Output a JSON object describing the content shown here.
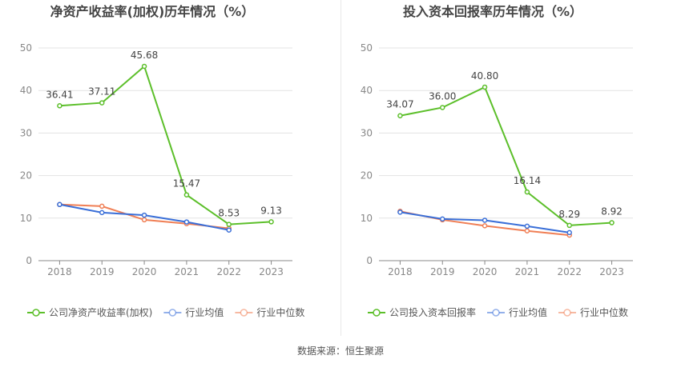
{
  "chart_data": [
    {
      "type": "line",
      "title": "净资产收益率(加权)历年情况（%）",
      "xlabel": "",
      "ylabel": "",
      "ylim": [
        0,
        50
      ],
      "yticks": [
        0,
        10,
        20,
        30,
        40,
        50
      ],
      "categories": [
        "2018",
        "2019",
        "2020",
        "2021",
        "2022",
        "2023"
      ],
      "grid": true,
      "legend_position": "bottom",
      "series": [
        {
          "name": "公司净资产收益率(加权)",
          "color": "#5cbf2a",
          "values": [
            36.41,
            37.11,
            45.68,
            15.47,
            8.53,
            9.13
          ],
          "labels": [
            "36.41",
            "37.11",
            "45.68",
            "15.47",
            "8.53",
            "9.13"
          ]
        },
        {
          "name": "行业均值",
          "color": "#3a6fd8",
          "values": [
            13.2,
            11.3,
            10.7,
            9.1,
            7.2,
            null
          ]
        },
        {
          "name": "行业中位数",
          "color": "#f07f55",
          "values": [
            13.2,
            12.8,
            9.6,
            8.7,
            7.6,
            null
          ]
        }
      ]
    },
    {
      "type": "line",
      "title": "投入资本回报率历年情况（%）",
      "xlabel": "",
      "ylabel": "",
      "ylim": [
        0,
        50
      ],
      "yticks": [
        0,
        10,
        20,
        30,
        40,
        50
      ],
      "categories": [
        "2018",
        "2019",
        "2020",
        "2021",
        "2022",
        "2023"
      ],
      "grid": true,
      "legend_position": "bottom",
      "series": [
        {
          "name": "公司投入资本回报率",
          "color": "#5cbf2a",
          "values": [
            34.07,
            36.0,
            40.8,
            16.14,
            8.29,
            8.92
          ],
          "labels": [
            "34.07",
            "36.00",
            "40.80",
            "16.14",
            "8.29",
            "8.92"
          ]
        },
        {
          "name": "行业均值",
          "color": "#3a6fd8",
          "values": [
            11.4,
            9.8,
            9.5,
            8.1,
            6.6,
            null
          ]
        },
        {
          "name": "行业中位数",
          "color": "#f07f55",
          "values": [
            11.6,
            9.6,
            8.2,
            7.0,
            6.0,
            null
          ]
        }
      ]
    }
  ],
  "footer": {
    "source": "数据来源：恒生聚源"
  }
}
